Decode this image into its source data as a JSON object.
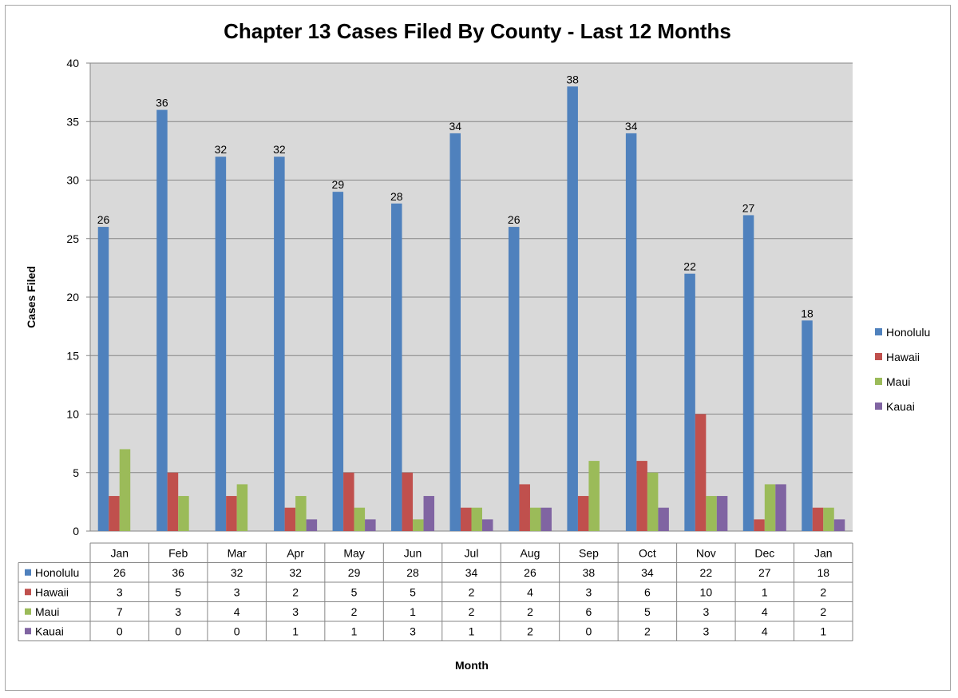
{
  "chart_data": {
    "type": "bar",
    "title": "Chapter 13 Cases Filed By County - Last 12 Months",
    "xlabel": "Month",
    "ylabel": "Cases Filed",
    "ylim": [
      0,
      40
    ],
    "yticks": [
      0,
      5,
      10,
      15,
      20,
      25,
      30,
      35,
      40
    ],
    "grid": true,
    "legend_position": "right",
    "data_table": true,
    "categories": [
      "Jan",
      "Feb",
      "Mar",
      "Apr",
      "May",
      "Jun",
      "Jul",
      "Aug",
      "Sep",
      "Oct",
      "Nov",
      "Dec",
      "Jan"
    ],
    "series": [
      {
        "name": "Honolulu",
        "color": "#4f81bd",
        "values": [
          26,
          36,
          32,
          32,
          29,
          28,
          34,
          26,
          38,
          34,
          22,
          27,
          18
        ],
        "show_labels": true
      },
      {
        "name": "Hawaii",
        "color": "#c0504d",
        "values": [
          3,
          5,
          3,
          2,
          5,
          5,
          2,
          4,
          3,
          6,
          10,
          1,
          2
        ],
        "show_labels": false
      },
      {
        "name": "Maui",
        "color": "#9bbb59",
        "values": [
          7,
          3,
          4,
          3,
          2,
          1,
          2,
          2,
          6,
          5,
          3,
          4,
          2
        ],
        "show_labels": false
      },
      {
        "name": "Kauai",
        "color": "#8064a2",
        "values": [
          0,
          0,
          0,
          1,
          1,
          3,
          1,
          2,
          0,
          2,
          3,
          4,
          1
        ],
        "show_labels": false
      }
    ],
    "plot_background": "#d9d9d9",
    "gridline_color": "#868686"
  }
}
